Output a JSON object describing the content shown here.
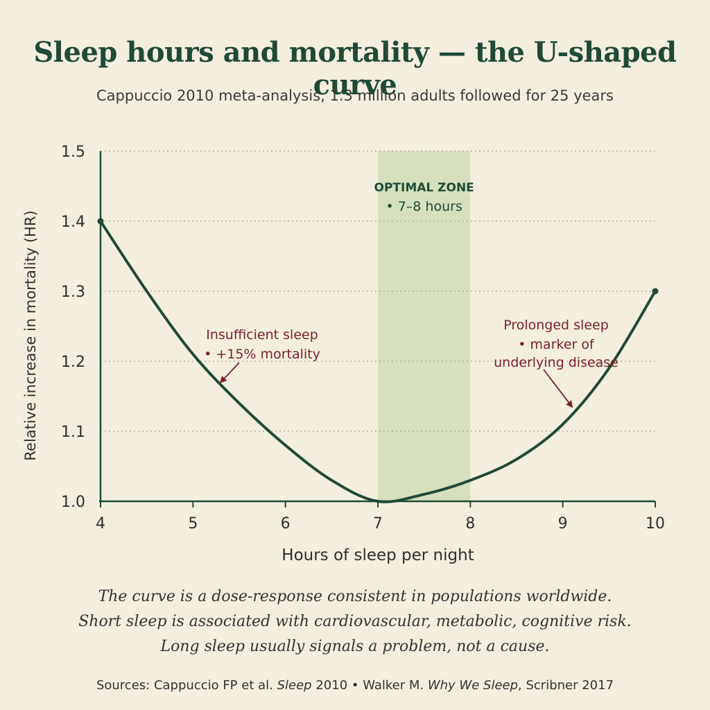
{
  "title": "Sleep hours and mortality — the U-shaped curve",
  "subtitle": "Cappuccio 2010 meta-analysis, 1.3 million adults followed for 25 years",
  "chart_data": {
    "type": "line",
    "title": "Sleep hours and mortality — the U-shaped curve",
    "subtitle": "Cappuccio 2010 meta-analysis, 1.3 million adults followed for 25 years",
    "xlabel": "Hours of sleep per night",
    "ylabel": "Relative increase in mortality (HR)",
    "xlim": [
      4,
      10
    ],
    "ylim": [
      1.0,
      1.5
    ],
    "x_ticks": [
      4,
      5,
      6,
      7,
      8,
      9,
      10
    ],
    "y_ticks": [
      1.0,
      1.1,
      1.2,
      1.3,
      1.4,
      1.5
    ],
    "x_tick_labels": [
      "4",
      "5",
      "6",
      "7",
      "8",
      "9",
      "10"
    ],
    "y_tick_labels": [
      "1.0",
      "1.1",
      "1.2",
      "1.3",
      "1.4",
      "1.5"
    ],
    "grid": "horizontal dotted",
    "line_color": "#1f4a38",
    "series": [
      {
        "x": [
          4,
          4.5,
          5,
          5.5,
          6,
          6.5,
          7,
          7.5,
          8,
          8.5,
          9,
          9.5,
          10
        ],
        "y": [
          1.4,
          1.3,
          1.21,
          1.14,
          1.08,
          1.03,
          1.0,
          1.01,
          1.03,
          1.06,
          1.11,
          1.19,
          1.3
        ]
      }
    ],
    "highlight_band": {
      "x_range": [
        7,
        8
      ],
      "color": "#d6e0be",
      "label_line1": "OPTIMAL ZONE",
      "label_line2": "• 7–8 hours"
    },
    "annotations": [
      {
        "lines": [
          "Insufficient sleep",
          "• +15% mortality"
        ],
        "arrow_to": [
          5.3,
          1.17
        ],
        "color": "#7a1f25"
      },
      {
        "lines": [
          "Prolonged sleep",
          "• marker of",
          "underlying disease"
        ],
        "arrow_to": [
          9.1,
          1.135
        ],
        "color": "#7a1f25"
      }
    ]
  },
  "notes": [
    "The curve is a dose-response consistent in populations worldwide.",
    "Short sleep is associated with cardiovascular, metabolic, cognitive risk.",
    "Long sleep usually signals a problem, not a cause."
  ],
  "sources": {
    "prefix": "Sources:  Cappuccio FP et al. ",
    "work1": "Sleep",
    "mid": " 2010  •  Walker M. ",
    "work2": "Why We Sleep",
    "suffix": ", Scribner 2017"
  }
}
